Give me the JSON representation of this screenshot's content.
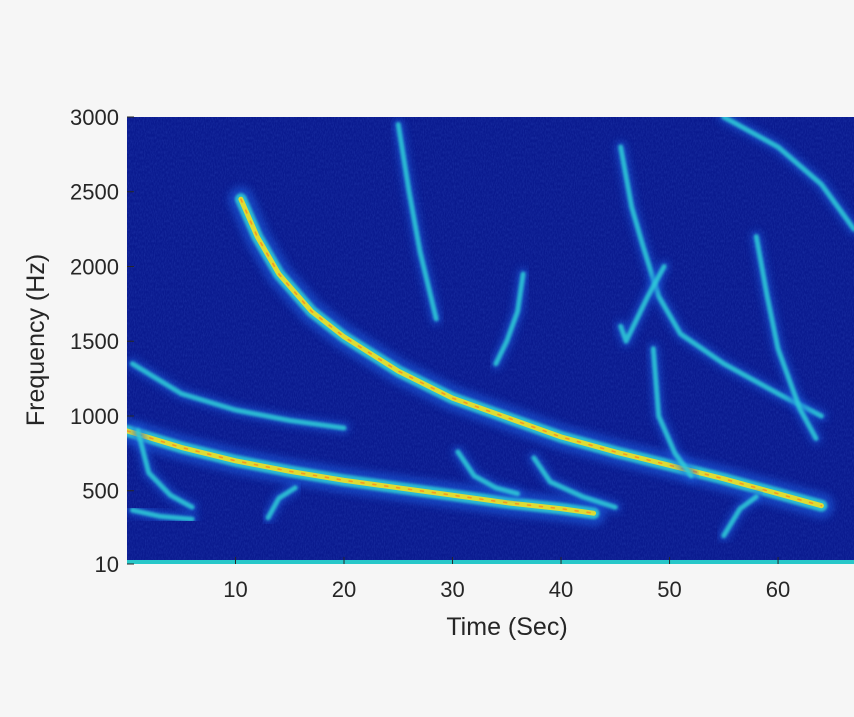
{
  "chart_data": {
    "type": "heatmap",
    "xlabel": "Time (Sec)",
    "ylabel": "Frequency (Hz)",
    "xlim": [
      0,
      67
    ],
    "ylim": [
      10,
      3000
    ],
    "x_ticks": [
      10,
      20,
      30,
      40,
      50,
      60
    ],
    "y_ticks": [
      10,
      500,
      1000,
      1500,
      2000,
      2500,
      3000
    ],
    "y_tick_labels": [
      "10",
      "500",
      "1000",
      "1500",
      "2000",
      "2500",
      "3000"
    ],
    "colormap": "jet",
    "colors": {
      "background": "#0a1a8f",
      "low": "#1f5fe0",
      "mid": "#2fd0d8",
      "high": "#f2e024",
      "peak": "#ff8a1a"
    },
    "series": [
      {
        "values": [
          [
            0,
            900
          ],
          [
            5,
            790
          ],
          [
            10,
            700
          ],
          [
            15,
            630
          ],
          [
            20,
            570
          ],
          [
            25,
            520
          ],
          [
            30,
            470
          ],
          [
            35,
            420
          ],
          [
            40,
            380
          ],
          [
            43,
            350
          ]
        ]
      },
      {
        "values": [
          [
            10.5,
            2450
          ],
          [
            12,
            2200
          ],
          [
            14,
            1950
          ],
          [
            17,
            1700
          ],
          [
            20,
            1530
          ],
          [
            25,
            1300
          ],
          [
            30,
            1120
          ],
          [
            35,
            990
          ],
          [
            40,
            860
          ],
          [
            45,
            760
          ],
          [
            50,
            670
          ],
          [
            55,
            580
          ],
          [
            60,
            480
          ],
          [
            64,
            400
          ]
        ]
      },
      {
        "values": [
          [
            0.5,
            1350
          ],
          [
            5,
            1150
          ],
          [
            10,
            1040
          ],
          [
            15,
            970
          ],
          [
            20,
            920
          ]
        ]
      },
      {
        "values": [
          [
            25,
            2950
          ],
          [
            26,
            2500
          ],
          [
            27,
            2100
          ],
          [
            28,
            1800
          ],
          [
            28.5,
            1650
          ]
        ]
      },
      {
        "values": [
          [
            36.5,
            1950
          ],
          [
            36,
            1700
          ],
          [
            35,
            1500
          ],
          [
            34,
            1350
          ]
        ]
      },
      {
        "values": [
          [
            45.5,
            2800
          ],
          [
            46.5,
            2400
          ],
          [
            47.5,
            2150
          ],
          [
            49,
            1800
          ],
          [
            51,
            1550
          ],
          [
            55,
            1350
          ],
          [
            60,
            1150
          ],
          [
            64,
            1000
          ]
        ]
      },
      {
        "values": [
          [
            45.5,
            1600
          ],
          [
            46,
            1500
          ],
          [
            48,
            1800
          ],
          [
            49.5,
            2000
          ]
        ]
      },
      {
        "values": [
          [
            58,
            2200
          ],
          [
            59,
            1800
          ],
          [
            60,
            1450
          ],
          [
            62,
            1050
          ],
          [
            63.5,
            850
          ]
        ]
      },
      {
        "values": [
          [
            55,
            3000
          ],
          [
            60,
            2800
          ],
          [
            64,
            2550
          ],
          [
            67,
            2250
          ]
        ]
      },
      {
        "values": [
          [
            48.5,
            1450
          ],
          [
            49,
            1000
          ],
          [
            50.5,
            750
          ],
          [
            52,
            600
          ]
        ]
      },
      {
        "values": [
          [
            1,
            900
          ],
          [
            2,
            620
          ],
          [
            4,
            470
          ],
          [
            6,
            390
          ]
        ]
      },
      {
        "values": [
          [
            30.5,
            760
          ],
          [
            32,
            600
          ],
          [
            34,
            520
          ],
          [
            36,
            480
          ]
        ]
      },
      {
        "values": [
          [
            37.5,
            720
          ],
          [
            39,
            560
          ],
          [
            42,
            460
          ],
          [
            45,
            390
          ]
        ]
      },
      {
        "values": [
          [
            13,
            320
          ],
          [
            14,
            450
          ],
          [
            15.5,
            520
          ]
        ]
      },
      {
        "values": [
          [
            55,
            200
          ],
          [
            56.5,
            380
          ],
          [
            58,
            460
          ]
        ]
      },
      {
        "values": [
          [
            0.5,
            370
          ],
          [
            3,
            330
          ],
          [
            6,
            310
          ]
        ]
      }
    ]
  }
}
